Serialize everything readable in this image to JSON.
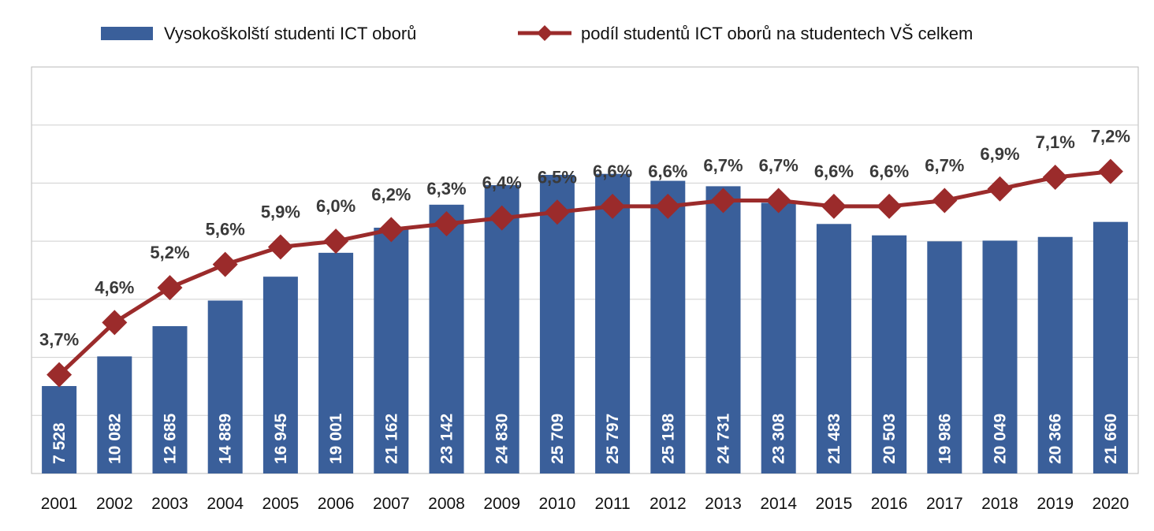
{
  "chart_data": {
    "type": "bar",
    "categories": [
      "2001",
      "2002",
      "2003",
      "2004",
      "2005",
      "2006",
      "2007",
      "2008",
      "2009",
      "2010",
      "2011",
      "2012",
      "2013",
      "2014",
      "2015",
      "2016",
      "2017",
      "2018",
      "2019",
      "2020"
    ],
    "series": [
      {
        "name": "Vysokoškolští studenti ICT oborů",
        "type": "bar",
        "color": "#3a5f9a",
        "axis": "left",
        "values": [
          7528,
          10082,
          12685,
          14889,
          16945,
          19001,
          21162,
          23142,
          24830,
          25709,
          25797,
          25198,
          24731,
          23308,
          21483,
          20503,
          19986,
          20049,
          20366,
          21660
        ],
        "labels": [
          "7 528",
          "10 082",
          "12 685",
          "14 889",
          "16 945",
          "19 001",
          "21 162",
          "23 142",
          "24 830",
          "25 709",
          "25 797",
          "25 198",
          "24 731",
          "23 308",
          "21 483",
          "20 503",
          "19 986",
          "20 049",
          "20 366",
          "21 660"
        ]
      },
      {
        "name": "podíl studentů ICT oborů na studentech VŠ celkem",
        "type": "line",
        "color": "#9b2b2b",
        "axis": "right",
        "values": [
          3.7,
          4.6,
          5.2,
          5.6,
          5.9,
          6.0,
          6.2,
          6.3,
          6.4,
          6.5,
          6.6,
          6.6,
          6.7,
          6.7,
          6.6,
          6.6,
          6.7,
          6.9,
          7.1,
          7.2
        ],
        "labels": [
          "3,7%",
          "4,6%",
          "5,2%",
          "5,6%",
          "5,9%",
          "6,0%",
          "6,2%",
          "6,3%",
          "6,4%",
          "6,5%",
          "6,6%",
          "6,6%",
          "6,7%",
          "6,7%",
          "6,6%",
          "6,6%",
          "6,7%",
          "6,9%",
          "7,1%",
          "7,2%"
        ]
      }
    ],
    "xlabel": "",
    "ylabel": "",
    "ylim": [
      0,
      35000
    ],
    "y2lim": [
      2.0,
      9.0
    ],
    "grid": true,
    "legend_position": "top"
  }
}
